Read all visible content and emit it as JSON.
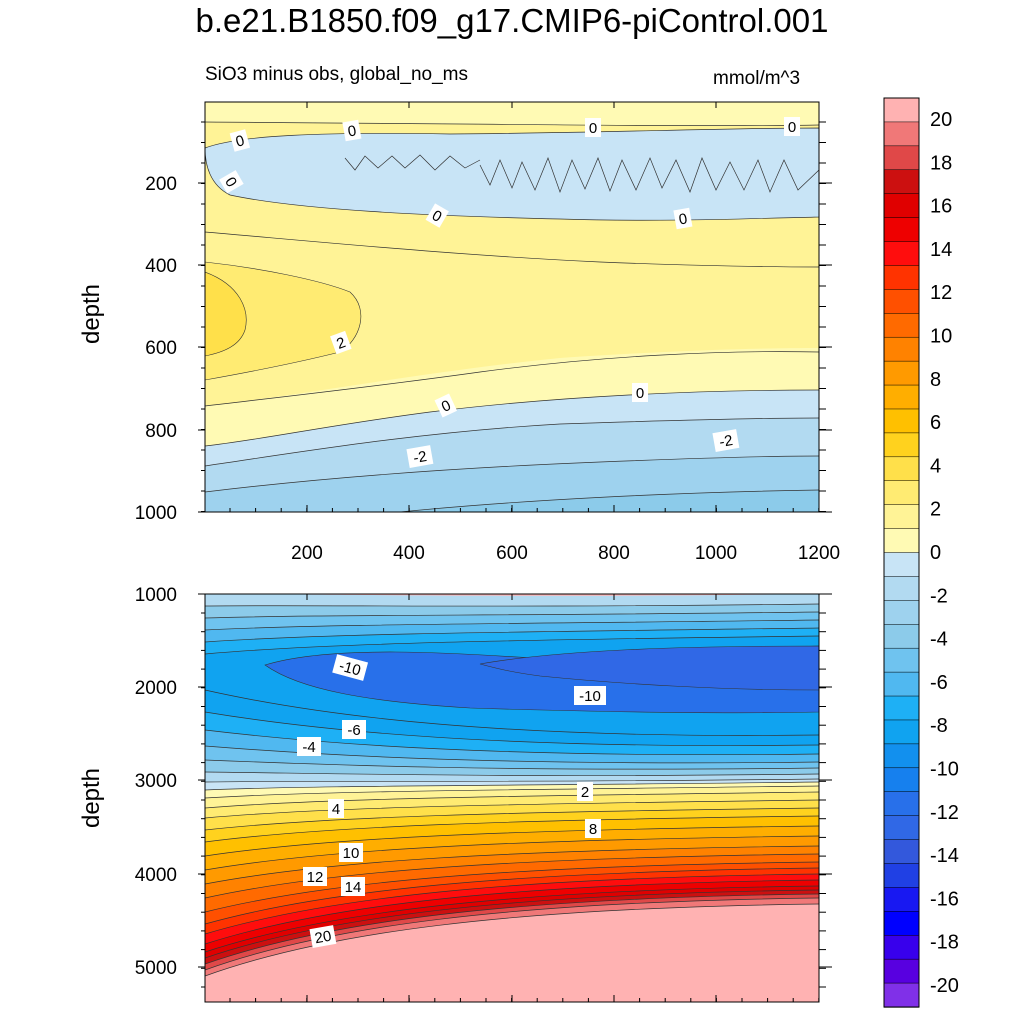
{
  "title": "b.e21.B1850.f09_g17.CMIP6-piControl.001",
  "subtitle": "SiO3 minus obs, global_no_ms",
  "units": "mmol/m^3",
  "chart_data": {
    "type": "contour",
    "x_ticks": [
      "200",
      "400",
      "600",
      "800",
      "1000",
      "1200"
    ],
    "colorbar": {
      "labels": [
        "20",
        "18",
        "16",
        "14",
        "12",
        "10",
        "8",
        "6",
        "4",
        "2",
        "0",
        "-2",
        "-4",
        "-6",
        "-8",
        "-10",
        "-12",
        "-14",
        "-16",
        "-18",
        "-20"
      ],
      "colors": [
        "#ffb2b2",
        "#f07878",
        "#e04848",
        "#cc1010",
        "#e00000",
        "#ee0000",
        "#ff0d0d",
        "#ff3300",
        "#ff5000",
        "#ff6a00",
        "#ff8200",
        "#ff9a00",
        "#ffae00",
        "#ffc000",
        "#ffd21e",
        "#ffe04a",
        "#ffeb72",
        "#fff396",
        "#fffab4",
        "#c8e4f6",
        "#b2daf1",
        "#9ed2ee",
        "#8ccbea",
        "#6fc3ef",
        "#50b8f0",
        "#1eb0f5",
        "#10a3f0",
        "#1290ee",
        "#1680ee",
        "#2870ea",
        "#3068e6",
        "#3358dc",
        "#2040e4",
        "#1818f2",
        "#0000ff",
        "#3800ec",
        "#5800e0",
        "#8030e8"
      ],
      "range": [
        -21,
        21
      ]
    },
    "panels": [
      {
        "name": "upper",
        "ylabel": "depth",
        "y_ticks": [
          "200",
          "400",
          "600",
          "800",
          "1000"
        ],
        "ylim": [
          1000,
          0
        ],
        "xlim": [
          0,
          1200
        ],
        "contour_labels": [
          "0",
          "0",
          "0",
          "0",
          "0",
          "0",
          "0",
          "2",
          "0",
          "0",
          "-2",
          "-2"
        ]
      },
      {
        "name": "lower",
        "ylabel": "depth",
        "y_ticks": [
          "1000",
          "2000",
          "3000",
          "4000",
          "5000"
        ],
        "ylim": [
          5400,
          1000
        ],
        "xlim": [
          0,
          1200
        ],
        "contour_labels": [
          "-10",
          "-10",
          "-6",
          "-4",
          "2",
          "4",
          "8",
          "10",
          "12",
          "14",
          "20"
        ]
      }
    ]
  }
}
